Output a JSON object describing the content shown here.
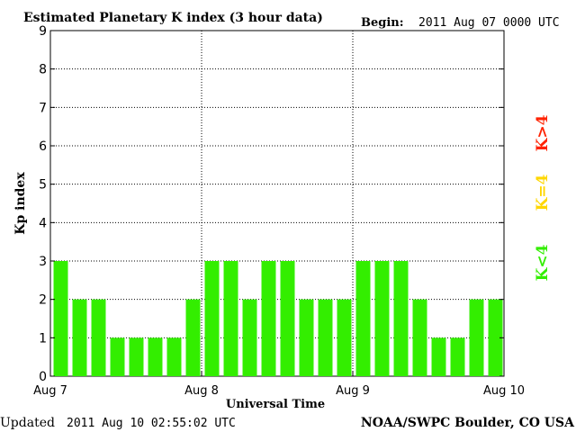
{
  "header": {
    "title": "Estimated Planetary K index (3 hour data)",
    "begin_label": "Begin:",
    "begin_value": "2011 Aug 07 0000 UTC"
  },
  "footer": {
    "updated_label": "Updated",
    "updated_value": "2011 Aug 10 02:55:02 UTC",
    "source": "NOAA/SWPC Boulder, CO USA"
  },
  "legend": [
    {
      "label": "K>4",
      "color": "#ff2200"
    },
    {
      "label": "K=4",
      "color": "#ffd700"
    },
    {
      "label": "K<4",
      "color": "#33ee00"
    }
  ],
  "chart_data": {
    "type": "bar",
    "title": "Estimated Planetary K index (3 hour data)",
    "xlabel": "Universal Time",
    "ylabel": "Kp index",
    "ylim": [
      0,
      9
    ],
    "y_ticks": [
      "0",
      "1",
      "2",
      "3",
      "4",
      "5",
      "6",
      "7",
      "8",
      "9"
    ],
    "x_tick_labels": [
      "Aug 7",
      "Aug 8",
      "Aug 9",
      "Aug 10"
    ],
    "values": [
      3,
      2,
      2,
      1,
      1,
      1,
      1,
      2,
      3,
      3,
      2,
      3,
      3,
      2,
      2,
      2,
      3,
      3,
      3,
      2,
      1,
      1,
      2,
      2
    ],
    "bar_color": "#33ee00",
    "grid": true
  }
}
